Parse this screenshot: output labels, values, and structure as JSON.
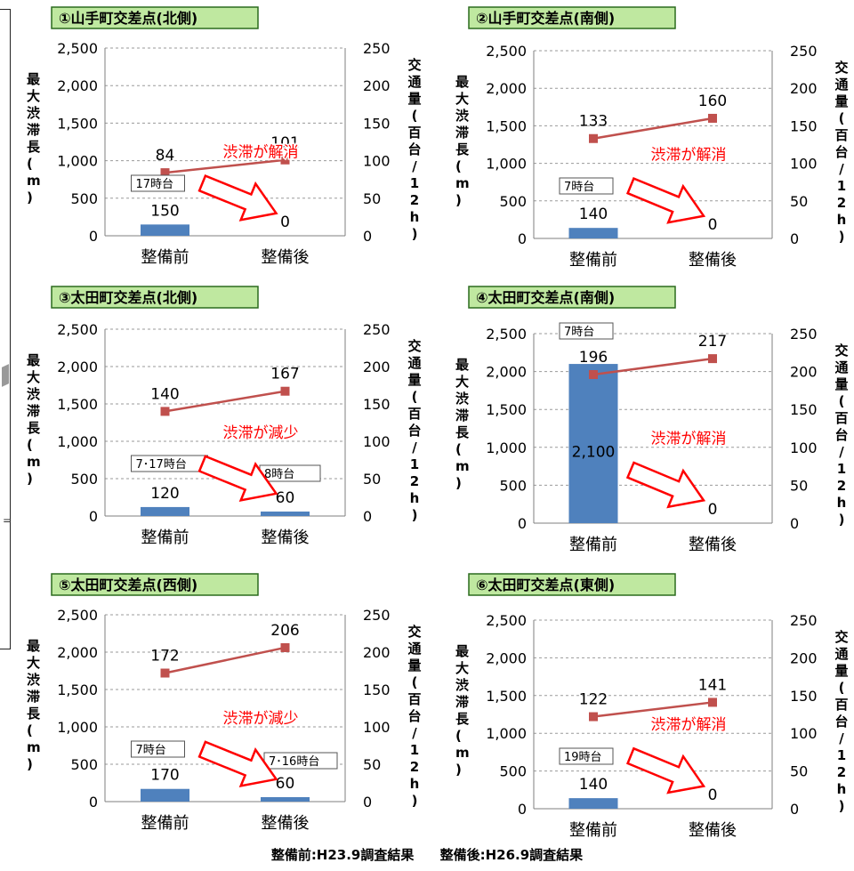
{
  "chart_data": [
    {
      "type": "bar+line",
      "title": "①山手町交差点(北側)",
      "categories": [
        "整備前",
        "整備後"
      ],
      "bar_values": [
        150,
        0
      ],
      "line_values": [
        84,
        101
      ],
      "ylim": [
        0,
        2500
      ],
      "y2lim": [
        0,
        250
      ],
      "yticks": [
        "0",
        "500",
        "1,000",
        "1,500",
        "2,000",
        "2,500"
      ],
      "y2ticks": [
        "0",
        "50",
        "100",
        "150",
        "200",
        "250"
      ],
      "ylabel": "最大渋滞長(m)",
      "y2label": "交通量(百台/12h)",
      "time_label": "17時台",
      "time_label2": "",
      "annotation": "渋滞が解消"
    },
    {
      "type": "bar+line",
      "title": "②山手町交差点(南側)",
      "categories": [
        "整備前",
        "整備後"
      ],
      "bar_values": [
        140,
        0
      ],
      "line_values": [
        133,
        160
      ],
      "ylim": [
        0,
        2500
      ],
      "y2lim": [
        0,
        250
      ],
      "yticks": [
        "0",
        "500",
        "1,000",
        "1,500",
        "2,000",
        "2,500"
      ],
      "y2ticks": [
        "0",
        "50",
        "100",
        "150",
        "200",
        "250"
      ],
      "ylabel": "最大渋滞長(m)",
      "y2label": "交通量(百台/12h)",
      "time_label": "7時台",
      "time_label2": "",
      "annotation": "渋滞が解消"
    },
    {
      "type": "bar+line",
      "title": "③太田町交差点(北側)",
      "categories": [
        "整備前",
        "整備後"
      ],
      "bar_values": [
        120,
        60
      ],
      "line_values": [
        140,
        167
      ],
      "ylim": [
        0,
        2500
      ],
      "y2lim": [
        0,
        250
      ],
      "yticks": [
        "0",
        "500",
        "1,000",
        "1,500",
        "2,000",
        "2,500"
      ],
      "y2ticks": [
        "0",
        "50",
        "100",
        "150",
        "200",
        "250"
      ],
      "ylabel": "最大渋滞長(m)",
      "y2label": "交通量(百台/12h)",
      "time_label": "7･17時台",
      "time_label2": "8時台",
      "annotation": "渋滞が減少"
    },
    {
      "type": "bar+line",
      "title": "④太田町交差点(南側)",
      "categories": [
        "整備前",
        "整備後"
      ],
      "bar_values": [
        2100,
        0
      ],
      "line_values": [
        196,
        217
      ],
      "ylim": [
        0,
        2500
      ],
      "y2lim": [
        0,
        250
      ],
      "yticks": [
        "0",
        "500",
        "1,000",
        "1,500",
        "2,000",
        "2,500"
      ],
      "y2ticks": [
        "0",
        "50",
        "100",
        "150",
        "200",
        "250"
      ],
      "ylabel": "最大渋滞長(m)",
      "y2label": "交通量(百台/12h)",
      "time_label": "7時台",
      "time_label2": "",
      "annotation": "渋滞が解消"
    },
    {
      "type": "bar+line",
      "title": "⑤太田町交差点(西側)",
      "categories": [
        "整備前",
        "整備後"
      ],
      "bar_values": [
        170,
        60
      ],
      "line_values": [
        172,
        206
      ],
      "ylim": [
        0,
        2500
      ],
      "y2lim": [
        0,
        250
      ],
      "yticks": [
        "0",
        "500",
        "1,000",
        "1,500",
        "2,000",
        "2,500"
      ],
      "y2ticks": [
        "0",
        "50",
        "100",
        "150",
        "200",
        "250"
      ],
      "ylabel": "最大渋滞長(m)",
      "y2label": "交通量(百台/12h)",
      "time_label": "7時台",
      "time_label2": "7･16時台",
      "annotation": "渋滞が減少"
    },
    {
      "type": "bar+line",
      "title": "⑥太田町交差点(東側)",
      "categories": [
        "整備前",
        "整備後"
      ],
      "bar_values": [
        140,
        0
      ],
      "line_values": [
        122,
        141
      ],
      "ylim": [
        0,
        2500
      ],
      "y2lim": [
        0,
        250
      ],
      "yticks": [
        "0",
        "500",
        "1,000",
        "1,500",
        "2,000",
        "2,500"
      ],
      "y2ticks": [
        "0",
        "50",
        "100",
        "150",
        "200",
        "250"
      ],
      "ylabel": "最大渋滞長(m)",
      "y2label": "交通量(百台/12h)",
      "time_label": "19時台",
      "time_label2": "",
      "annotation": "渋滞が解消"
    }
  ],
  "colors": {
    "bar": "#4f81bd",
    "line": "#c0504d",
    "annotation": "#ff0000",
    "title_bg": "#bfe8a0",
    "title_border": "#2b6b1e"
  },
  "caption": {
    "before": "整備前:H23.9調査結果",
    "after": "整備後:H26.9調査結果"
  }
}
